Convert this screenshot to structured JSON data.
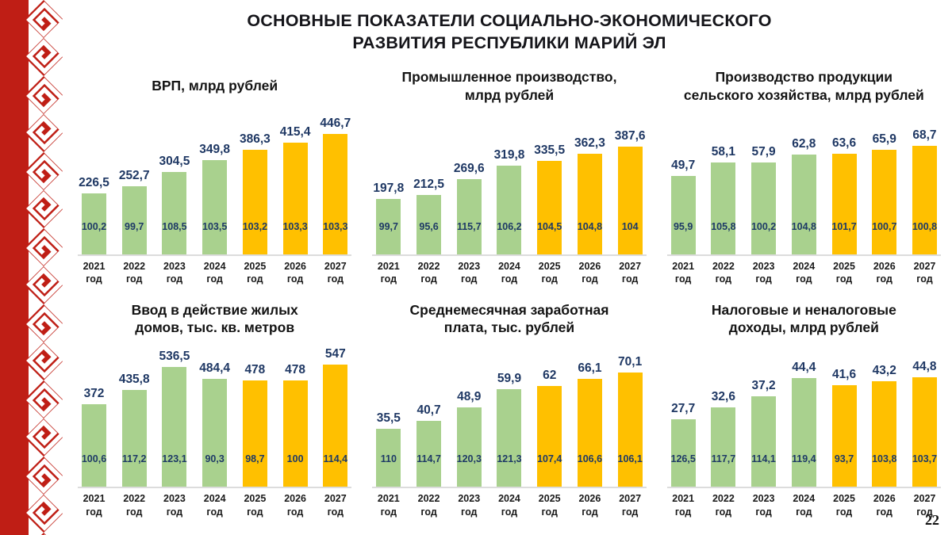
{
  "page": {
    "title_lines": [
      "ОСНОВНЫЕ ПОКАЗАТЕЛИ СОЦИАЛЬНО-ЭКОНОМИЧЕСКОГО",
      "РАЗВИТИЯ РЕСПУБЛИКИ МАРИЙ ЭЛ"
    ],
    "page_number": "22"
  },
  "colors": {
    "bar_actual": "#a9d18e",
    "bar_forecast": "#ffc000",
    "value_label_blue": "#1f3864",
    "ornament_red": "#bf1e15",
    "axis_line": "#dcdcdc"
  },
  "legend_note": {
    "actual_years": "2021-2024 green bars",
    "forecast_years": "2025-2027 orange bars"
  },
  "chart_data": [
    {
      "type": "bar",
      "title_lines": [
        "ВРП, млрд рублей"
      ],
      "categories": [
        "2021",
        "2022",
        "2023",
        "2024",
        "2025",
        "2026",
        "2027"
      ],
      "category_suffix": "год",
      "values": [
        226.5,
        252.7,
        304.5,
        349.8,
        386.3,
        415.4,
        446.7
      ],
      "growth_percent": [
        100.2,
        99.7,
        108.5,
        103.5,
        103.2,
        103.3,
        103.3
      ],
      "actual_count": 4,
      "ylim": [
        0,
        470
      ],
      "grid": false,
      "legend": false
    },
    {
      "type": "bar",
      "title_lines": [
        "Промышленное производство,",
        "млрд рублей"
      ],
      "categories": [
        "2021",
        "2022",
        "2023",
        "2024",
        "2025",
        "2026",
        "2027"
      ],
      "category_suffix": "год",
      "values": [
        197.8,
        212.5,
        269.6,
        319.8,
        335.5,
        362.3,
        387.6
      ],
      "growth_percent": [
        99.7,
        95.6,
        115.7,
        106.2,
        104.5,
        104.8,
        104
      ],
      "actual_count": 4,
      "ylim": [
        0,
        455
      ],
      "grid": false,
      "legend": false
    },
    {
      "type": "bar",
      "title_lines": [
        "Производство продукции",
        "сельского хозяйства, млрд рублей"
      ],
      "categories": [
        "2021",
        "2022",
        "2023",
        "2024",
        "2025",
        "2026",
        "2027"
      ],
      "category_suffix": "год",
      "values": [
        49.7,
        58.1,
        57.9,
        62.8,
        63.6,
        65.9,
        68.7
      ],
      "growth_percent": [
        95.9,
        105.8,
        100.2,
        104.8,
        101.7,
        100.7,
        100.8
      ],
      "actual_count": 4,
      "ylim": [
        0,
        80
      ],
      "grid": false,
      "legend": false
    },
    {
      "type": "bar",
      "title_lines": [
        "Ввод в действие жилых",
        "домов, тыс. кв. метров"
      ],
      "categories": [
        "2021",
        "2022",
        "2023",
        "2024",
        "2025",
        "2026",
        "2027"
      ],
      "category_suffix": "год",
      "values": [
        372,
        435.8,
        536.5,
        484.4,
        478,
        478,
        547
      ],
      "growth_percent": [
        100.6,
        117.2,
        123.1,
        90.3,
        98.7,
        100,
        114.4
      ],
      "actual_count": 4,
      "ylim": [
        0,
        570
      ],
      "grid": false,
      "legend": false
    },
    {
      "type": "bar",
      "title_lines": [
        "Среднемесячная заработная",
        "плата, тыс. рублей"
      ],
      "categories": [
        "2021",
        "2022",
        "2023",
        "2024",
        "2025",
        "2026",
        "2027"
      ],
      "category_suffix": "год",
      "values": [
        35.5,
        40.7,
        48.9,
        59.9,
        62,
        66.1,
        70.1
      ],
      "growth_percent": [
        110,
        114.7,
        120.3,
        121.3,
        107.4,
        106.6,
        106.1
      ],
      "actual_count": 4,
      "ylim": [
        0,
        78
      ],
      "grid": false,
      "legend": false
    },
    {
      "type": "bar",
      "title_lines": [
        "Налоговые и неналоговые",
        "доходы, млрд рублей"
      ],
      "categories": [
        "2021",
        "2022",
        "2023",
        "2024",
        "2025",
        "2026",
        "2027"
      ],
      "category_suffix": "год",
      "values": [
        27.7,
        32.6,
        37.2,
        44.4,
        41.6,
        43.2,
        44.8
      ],
      "growth_percent": [
        126.5,
        117.7,
        114.1,
        119.4,
        93.7,
        103.8,
        103.7
      ],
      "actual_count": 4,
      "ylim": [
        0,
        52
      ],
      "grid": false,
      "legend": false
    }
  ]
}
